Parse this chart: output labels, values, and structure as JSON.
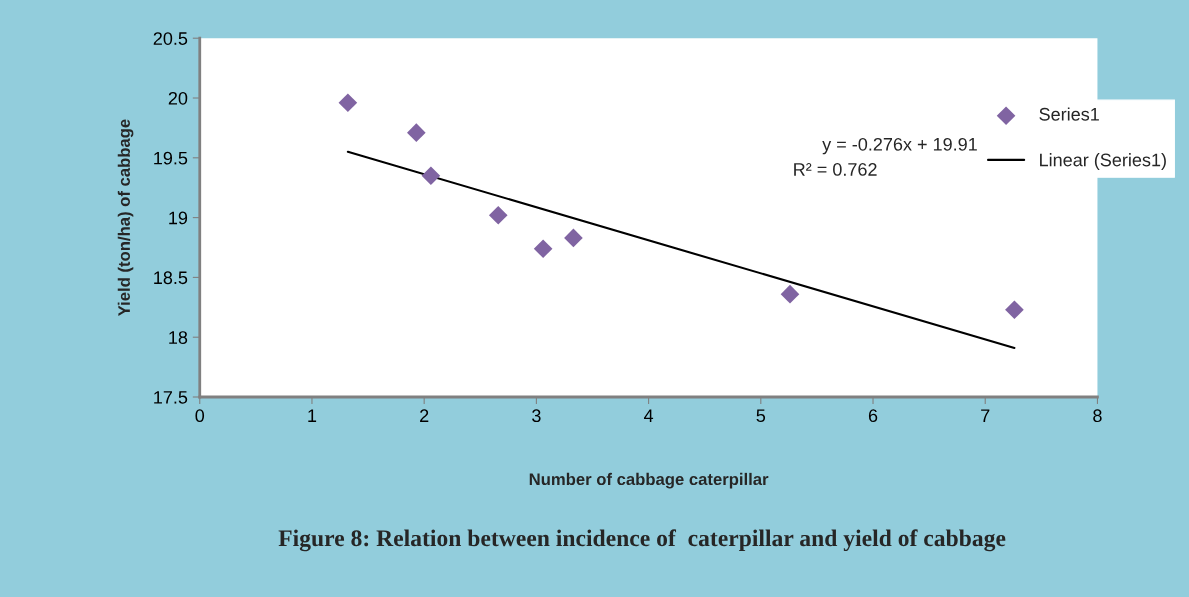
{
  "chart_data": {
    "type": "scatter",
    "xlabel": "Number of cabbage caterpillar",
    "ylabel": "Yield (ton/ha) of cabbage",
    "xlim": [
      0,
      8
    ],
    "xticks": [
      0,
      1,
      2,
      3,
      4,
      5,
      6,
      7,
      8
    ],
    "ylim": [
      17.5,
      20.5
    ],
    "yticks": [
      17.5,
      18,
      18.5,
      19,
      19.5,
      20,
      20.5
    ],
    "grid": false,
    "legend": "right",
    "series": [
      {
        "name": "Series1",
        "marker": "diamond",
        "color": "#8064a2",
        "x": [
          1.32,
          1.93,
          2.06,
          2.66,
          3.06,
          3.33,
          5.26,
          7.26
        ],
        "values": [
          19.96,
          19.71,
          19.35,
          19.02,
          18.74,
          18.83,
          18.36,
          18.23
        ]
      },
      {
        "name": "Linear (Series1)",
        "type": "line",
        "color": "#000000",
        "line_style": "solid",
        "x": [
          1.32,
          7.26
        ],
        "values": [
          19.55,
          17.91
        ]
      }
    ],
    "annotations": [
      "y = -0.276x + 19.91",
      "R² = 0.762",
      "Figure 8: Relation between incidence of  caterpillar and yield of cabbage"
    ]
  }
}
